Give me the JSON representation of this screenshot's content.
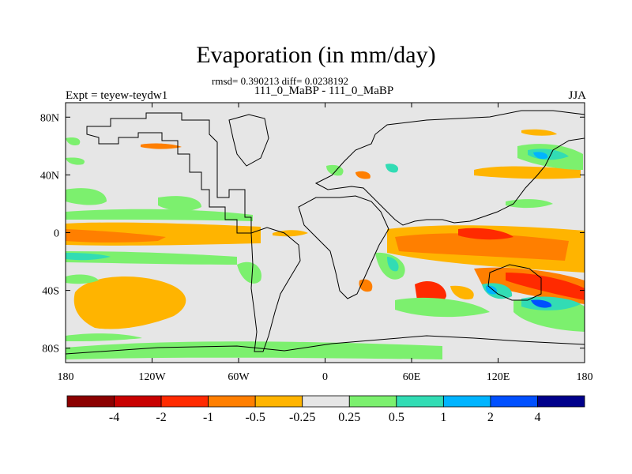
{
  "title": "Evaporation (in mm/day)",
  "stats": "rmsd= 0.390213 diff= 0.0238192",
  "subtitle": "111_0_MaBP - 111_0_MaBP",
  "experiment": "Expt = teyew-teydw1",
  "season": "JJA",
  "map": {
    "lon_ticks": [
      {
        "value": -180,
        "label": "180"
      },
      {
        "value": -120,
        "label": "120W"
      },
      {
        "value": -60,
        "label": "60W"
      },
      {
        "value": 0,
        "label": "0"
      },
      {
        "value": 60,
        "label": "60E"
      },
      {
        "value": 120,
        "label": "120E"
      },
      {
        "value": 180,
        "label": "180"
      }
    ],
    "lat_ticks": [
      {
        "value": 80,
        "label": "80N"
      },
      {
        "value": 40,
        "label": "40N"
      },
      {
        "value": 0,
        "label": "0"
      },
      {
        "value": -40,
        "label": "40S"
      },
      {
        "value": -80,
        "label": "80S"
      }
    ],
    "background_color": "#e6e6e6"
  },
  "colorbar": {
    "colors": [
      "#8b0000",
      "#c80000",
      "#ff2a00",
      "#ff7f00",
      "#ffb400",
      "#e6e6e6",
      "#7cf06e",
      "#32dcb4",
      "#00b4ff",
      "#0050ff",
      "#00008b"
    ],
    "labels": [
      "-4",
      "-2",
      "-1",
      "-0.5",
      "-0.25",
      "0.25",
      "0.5",
      "1",
      "2",
      "4"
    ]
  }
}
